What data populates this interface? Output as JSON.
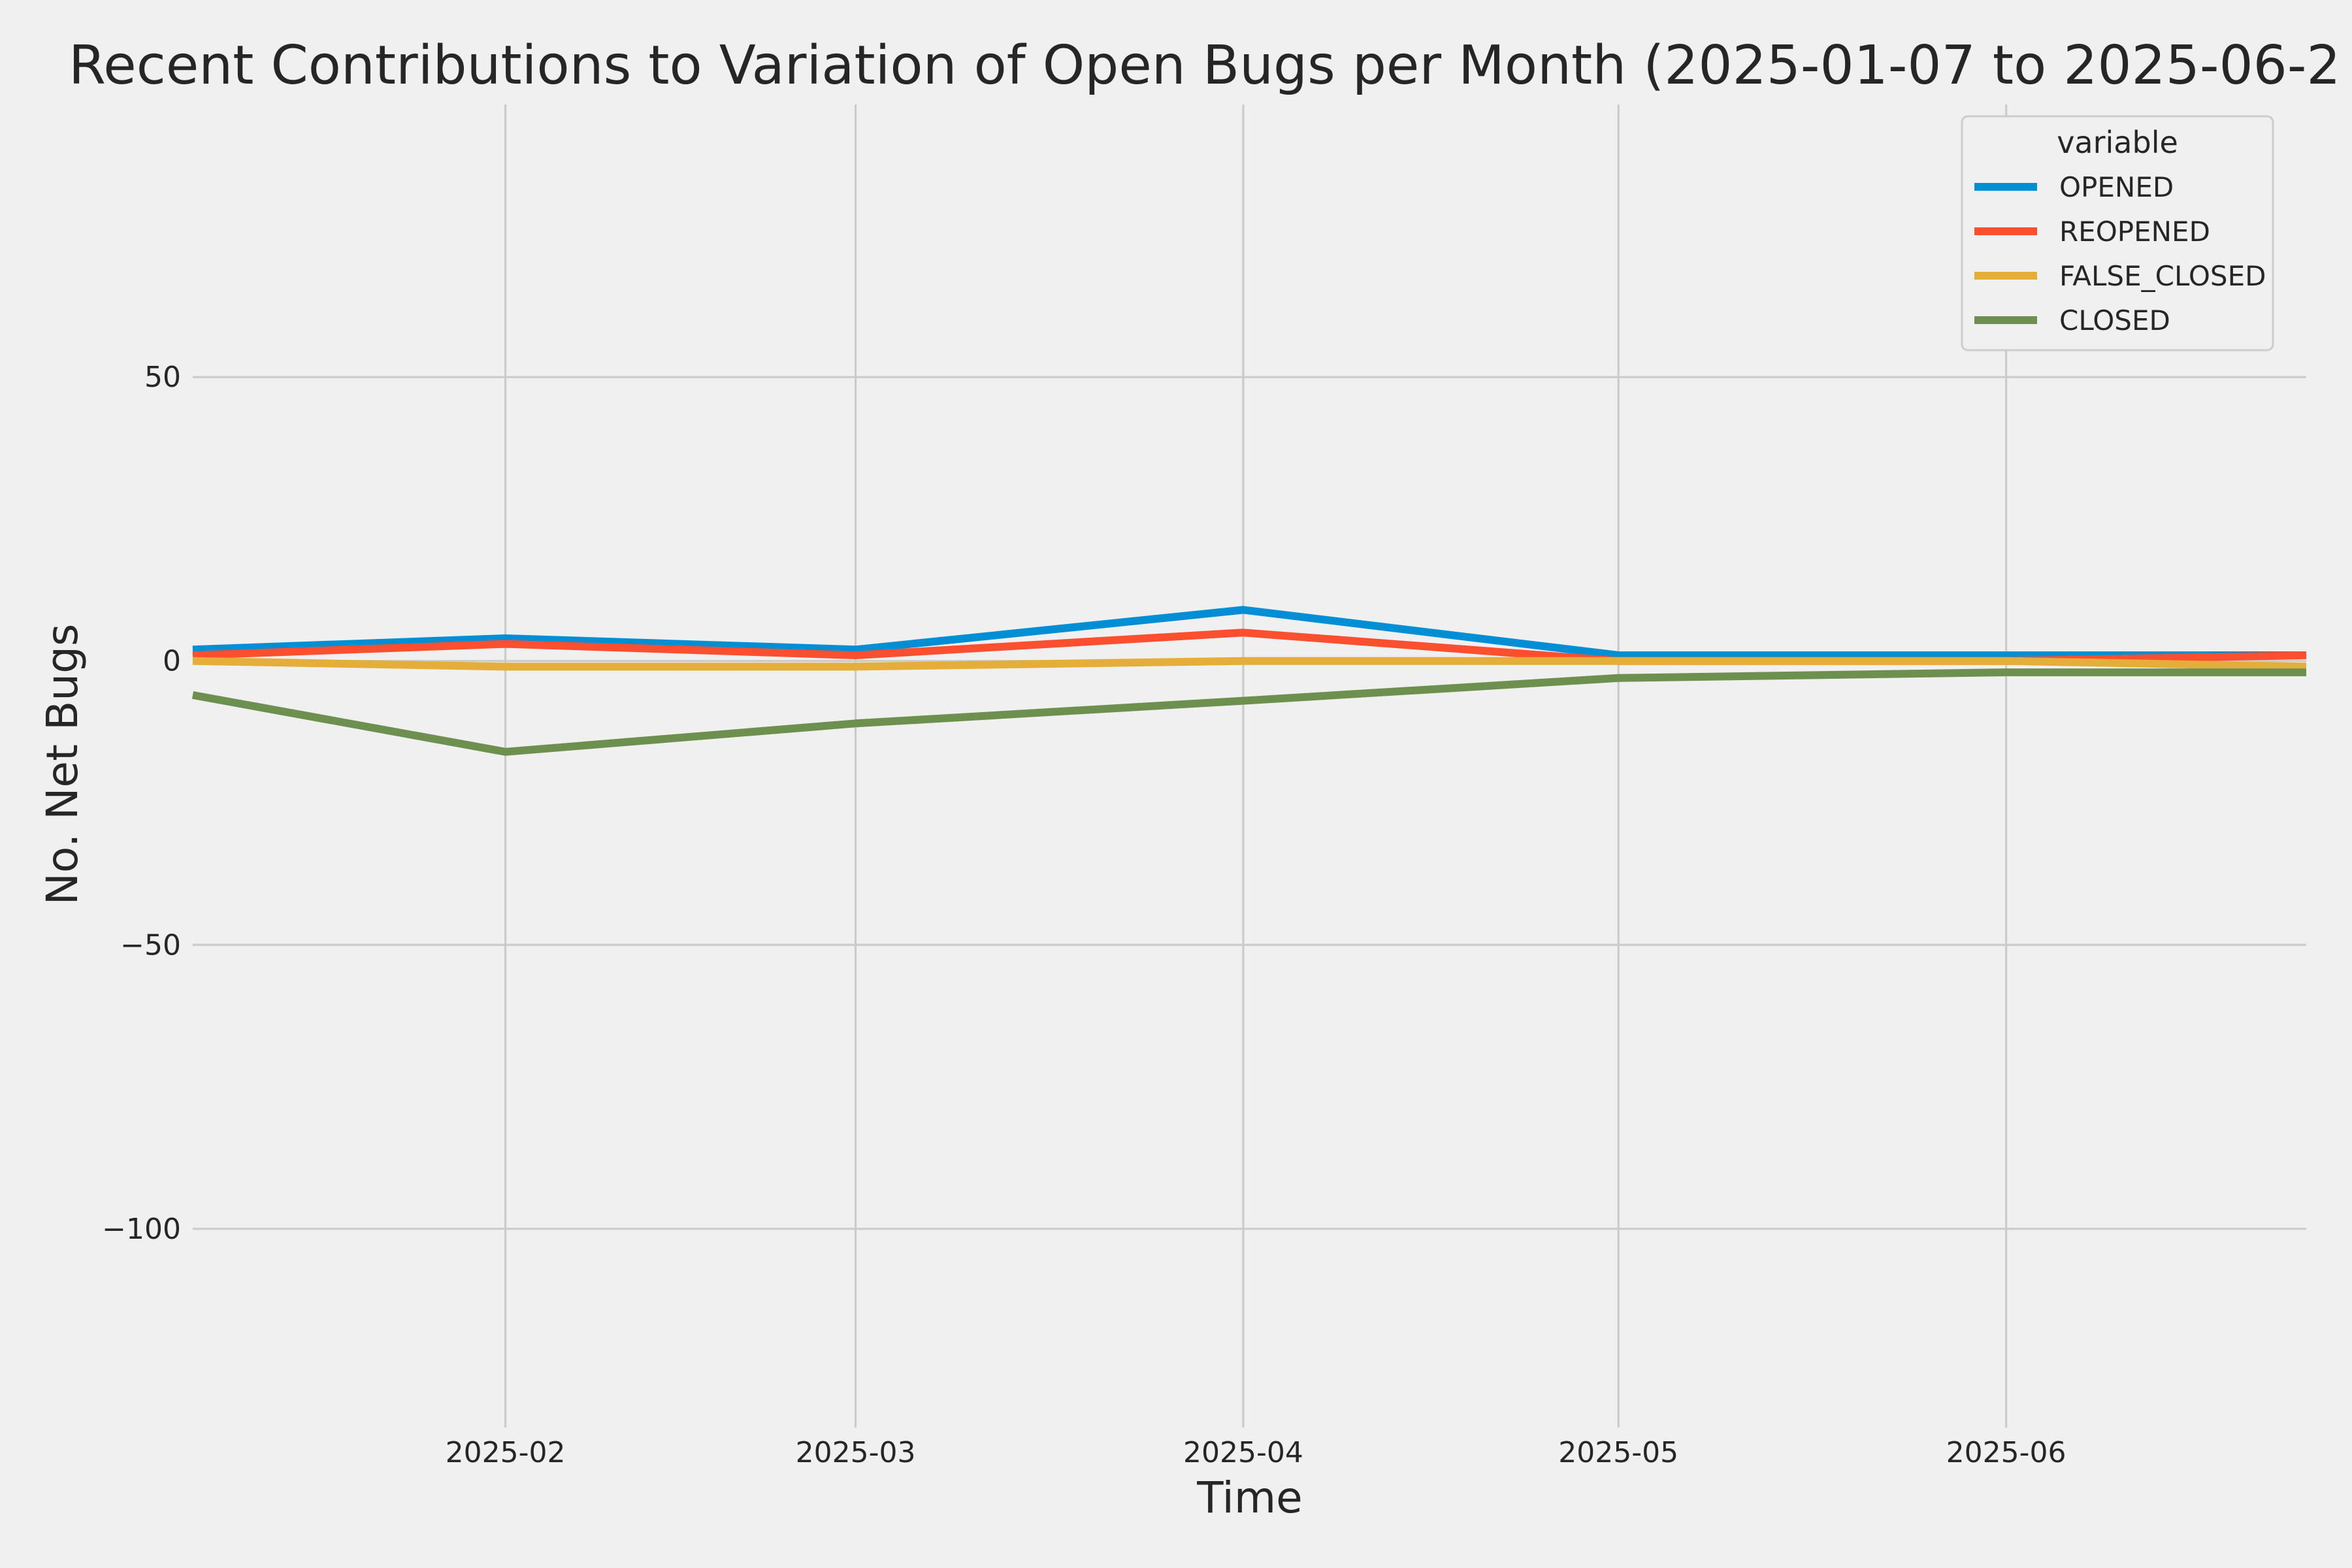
{
  "chart_data": {
    "type": "line",
    "title": "Recent Contributions to Variation of Open Bugs per Month (2025-01-07 to 2025-06-2",
    "xlabel": "Time",
    "ylabel": "No. Net Bugs",
    "x": [
      "2025-01-07",
      "2025-02-01",
      "2025-03-01",
      "2025-04-01",
      "2025-05-01",
      "2025-06-01",
      "2025-06-25"
    ],
    "xlim": [
      "2025-01-07",
      "2025-06-25"
    ],
    "ylim": [
      -135,
      98
    ],
    "x_ticks": [
      {
        "date": "2025-02-01",
        "label": "2025-02"
      },
      {
        "date": "2025-03-01",
        "label": "2025-03"
      },
      {
        "date": "2025-04-01",
        "label": "2025-04"
      },
      {
        "date": "2025-05-01",
        "label": "2025-05"
      },
      {
        "date": "2025-06-01",
        "label": "2025-06"
      }
    ],
    "y_ticks": [
      {
        "value": 50,
        "label": "50"
      },
      {
        "value": 0,
        "label": "0"
      },
      {
        "value": -50,
        "label": "−50"
      },
      {
        "value": -100,
        "label": "−100"
      }
    ],
    "grid": true,
    "legend": {
      "title": "variable",
      "position": "top-right"
    },
    "series": [
      {
        "name": "OPENED",
        "color": "#008fd5",
        "values": [
          2,
          4,
          2,
          9,
          1,
          1,
          1
        ]
      },
      {
        "name": "REOPENED",
        "color": "#fc4f30",
        "values": [
          1,
          3,
          1,
          5,
          0,
          0,
          1
        ]
      },
      {
        "name": "FALSE_CLOSED",
        "color": "#e5ae38",
        "values": [
          0,
          -1,
          -1,
          0,
          0,
          0,
          -1
        ]
      },
      {
        "name": "CLOSED",
        "color": "#6d904f",
        "values": [
          -6,
          -16,
          -11,
          -7,
          -3,
          -2,
          -2
        ]
      }
    ]
  }
}
